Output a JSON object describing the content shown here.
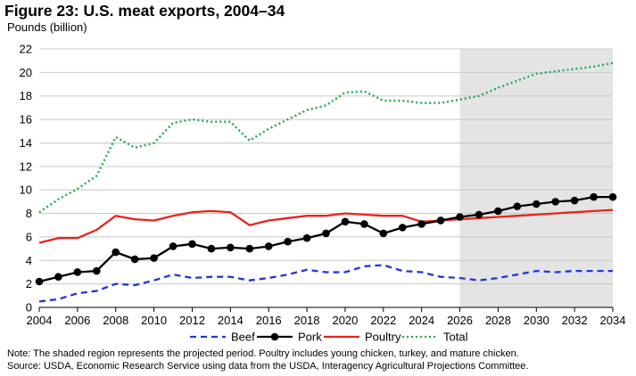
{
  "chart_data": {
    "type": "line",
    "title": "Figure 23: U.S. meat exports, 2004–34",
    "ylabel": "Pounds (billion)",
    "xlabel": "",
    "xlim": [
      2004,
      2034
    ],
    "ylim": [
      0,
      22
    ],
    "x_ticks": [
      "2004",
      "2006",
      "2008",
      "2010",
      "2012",
      "2014",
      "2016",
      "2018",
      "2020",
      "2022",
      "2024",
      "2026",
      "2028",
      "2030",
      "2032",
      "2034"
    ],
    "y_ticks": [
      "0",
      "2",
      "4",
      "6",
      "8",
      "10",
      "12",
      "14",
      "16",
      "18",
      "20",
      "22"
    ],
    "shaded_region": [
      2026,
      2034
    ],
    "legend_position": "bottom",
    "x": [
      2004,
      2005,
      2006,
      2007,
      2008,
      2009,
      2010,
      2011,
      2012,
      2013,
      2014,
      2015,
      2016,
      2017,
      2018,
      2019,
      2020,
      2021,
      2022,
      2023,
      2024,
      2025,
      2026,
      2027,
      2028,
      2029,
      2030,
      2031,
      2032,
      2033,
      2034
    ],
    "series": [
      {
        "name": "Beef",
        "color": "#1f37d6",
        "style": "dashed",
        "values": [
          0.5,
          0.7,
          1.2,
          1.4,
          2.0,
          1.9,
          2.3,
          2.8,
          2.5,
          2.6,
          2.6,
          2.3,
          2.5,
          2.8,
          3.2,
          3.0,
          3.0,
          3.5,
          3.6,
          3.1,
          3.0,
          2.6,
          2.5,
          2.3,
          2.5,
          2.8,
          3.1,
          3.0,
          3.1,
          3.1,
          3.1
        ]
      },
      {
        "name": "Pork",
        "color": "#000000",
        "style": "solid-markers",
        "values": [
          2.2,
          2.6,
          3.0,
          3.1,
          4.7,
          4.1,
          4.2,
          5.2,
          5.4,
          5.0,
          5.1,
          5.0,
          5.2,
          5.6,
          5.9,
          6.3,
          7.3,
          7.1,
          6.3,
          6.8,
          7.1,
          7.4,
          7.7,
          7.9,
          8.2,
          8.6,
          8.8,
          9.0,
          9.1,
          9.4,
          9.4
        ]
      },
      {
        "name": "Poultry",
        "color": "#e8231c",
        "style": "solid",
        "values": [
          5.5,
          5.9,
          5.9,
          6.6,
          7.8,
          7.5,
          7.4,
          7.8,
          8.1,
          8.2,
          8.1,
          7.0,
          7.4,
          7.6,
          7.8,
          7.8,
          8.0,
          7.9,
          7.8,
          7.8,
          7.3,
          7.4,
          7.5,
          7.6,
          7.7,
          7.8,
          7.9,
          8.0,
          8.1,
          8.2,
          8.3
        ]
      },
      {
        "name": "Total",
        "color": "#1ea84b",
        "style": "dotted",
        "values": [
          8.1,
          9.2,
          10.1,
          11.2,
          14.5,
          13.6,
          14.0,
          15.7,
          16.0,
          15.8,
          15.8,
          14.2,
          15.2,
          16.0,
          16.8,
          17.2,
          18.3,
          18.4,
          17.6,
          17.6,
          17.4,
          17.4,
          17.7,
          18.0,
          18.7,
          19.3,
          19.9,
          20.1,
          20.3,
          20.5,
          20.8
        ]
      }
    ]
  },
  "notes": {
    "note": "Note: The shaded region represents the projected period. Poultry includes young chicken, turkey, and mature chicken.",
    "source": "Source: USDA, Economic Research Service using data from the USDA, Interagency Agricultural Projections Committee."
  }
}
